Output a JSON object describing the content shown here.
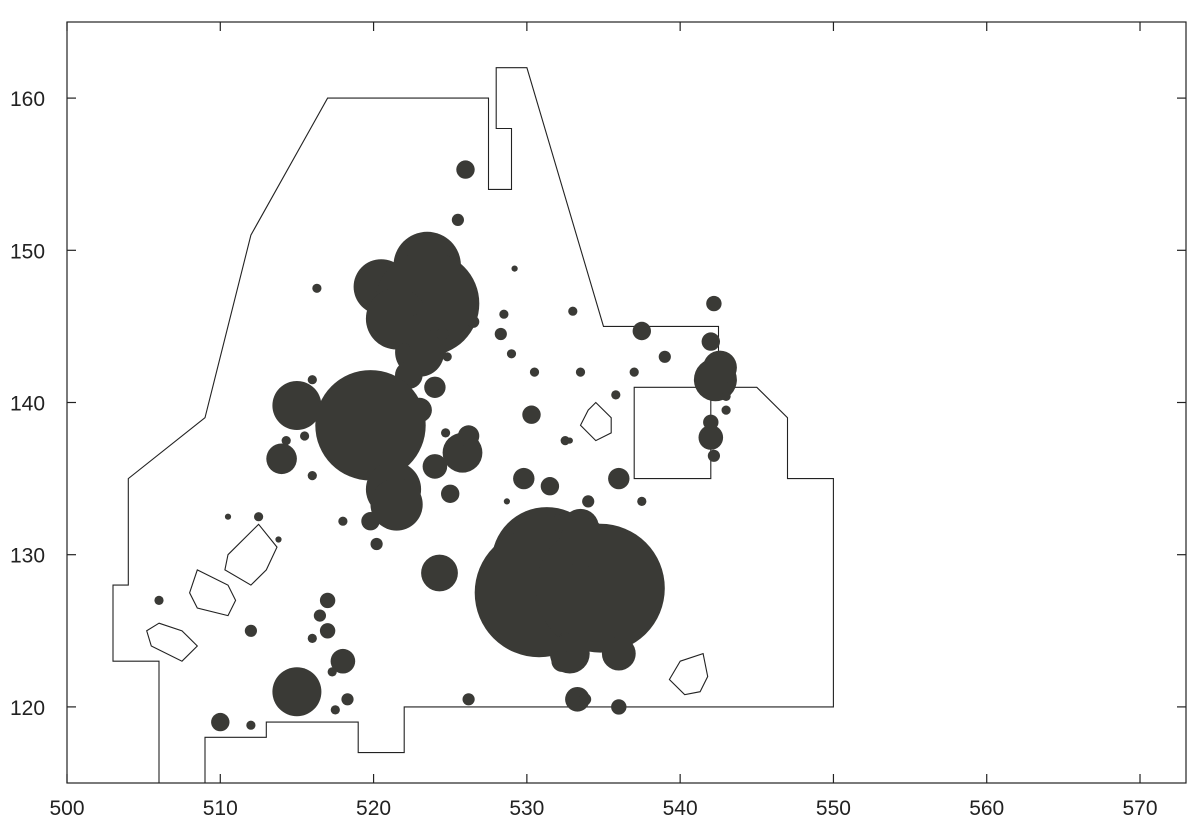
{
  "chart_data": {
    "type": "scatter",
    "title": "",
    "xlabel": "",
    "ylabel": "",
    "xlim": [
      500,
      573
    ],
    "ylim": [
      115,
      165
    ],
    "x_ticks": [
      500,
      510,
      520,
      530,
      540,
      550,
      560,
      570
    ],
    "y_ticks": [
      120,
      130,
      140,
      150,
      160
    ],
    "grid": false,
    "legend": "none",
    "colors": {
      "bubble": "#3a3a36",
      "line": "#222222"
    },
    "outlines": [
      {
        "name": "main-boundary",
        "closed": false,
        "points": [
          [
            506,
            115
          ],
          [
            506,
            123
          ],
          [
            503,
            123
          ],
          [
            503,
            128
          ],
          [
            504,
            128
          ],
          [
            504,
            135
          ],
          [
            509,
            139
          ],
          [
            512,
            151
          ],
          [
            517,
            160
          ],
          [
            527.5,
            160
          ],
          [
            527.5,
            154
          ],
          [
            529,
            154
          ],
          [
            529,
            158
          ],
          [
            528,
            158
          ],
          [
            528,
            162
          ],
          [
            530,
            162
          ],
          [
            535,
            145
          ],
          [
            542.5,
            145
          ],
          [
            542.5,
            141
          ],
          [
            545,
            141
          ],
          [
            547,
            139
          ],
          [
            547,
            135
          ],
          [
            550,
            135
          ],
          [
            550,
            120
          ],
          [
            522,
            120
          ],
          [
            522,
            117
          ],
          [
            519,
            117
          ],
          [
            519,
            119
          ],
          [
            513,
            119
          ],
          [
            513,
            118
          ],
          [
            509,
            118
          ],
          [
            509,
            115
          ]
        ]
      },
      {
        "name": "inner-rectangle",
        "closed": true,
        "points": [
          [
            537,
            141
          ],
          [
            542,
            141
          ],
          [
            542,
            135
          ],
          [
            537,
            135
          ]
        ]
      },
      {
        "name": "pentagon-right-upper",
        "closed": true,
        "points": [
          [
            534.5,
            140
          ],
          [
            535.5,
            139
          ],
          [
            535.5,
            138
          ],
          [
            534.5,
            137.5
          ],
          [
            533.5,
            138.5
          ],
          [
            534,
            139.5
          ]
        ]
      },
      {
        "name": "polygon-right-lower",
        "closed": true,
        "points": [
          [
            540,
            123
          ],
          [
            541.5,
            123.5
          ],
          [
            541.8,
            122
          ],
          [
            541.3,
            121
          ],
          [
            540.3,
            120.8
          ],
          [
            539.3,
            121.8
          ]
        ]
      },
      {
        "name": "polygon-left-top",
        "closed": true,
        "points": [
          [
            510.5,
            130
          ],
          [
            512.5,
            132
          ],
          [
            513.7,
            130.5
          ],
          [
            513,
            129
          ],
          [
            512,
            128
          ],
          [
            510.3,
            129
          ]
        ]
      },
      {
        "name": "polygon-left-mid",
        "closed": true,
        "points": [
          [
            508.5,
            129
          ],
          [
            510.5,
            128
          ],
          [
            511,
            127
          ],
          [
            510.5,
            126
          ],
          [
            508.5,
            126.5
          ],
          [
            508,
            127.5
          ]
        ]
      },
      {
        "name": "polygon-left-bottom",
        "closed": true,
        "points": [
          [
            506,
            125.5
          ],
          [
            507.5,
            125
          ],
          [
            508.5,
            124
          ],
          [
            507.5,
            123
          ],
          [
            505.5,
            124
          ],
          [
            505.2,
            125
          ]
        ]
      }
    ],
    "points": [
      {
        "x": 526.0,
        "y": 155.3,
        "size": 0.6
      },
      {
        "x": 525.5,
        "y": 152.0,
        "size": 0.4
      },
      {
        "x": 523.5,
        "y": 150.5,
        "size": 0.4
      },
      {
        "x": 523.5,
        "y": 149.0,
        "size": 2.2
      },
      {
        "x": 520.5,
        "y": 147.6,
        "size": 1.8
      },
      {
        "x": 522.5,
        "y": 147.0,
        "size": 2.0
      },
      {
        "x": 523.5,
        "y": 146.5,
        "size": 3.4
      },
      {
        "x": 521.5,
        "y": 145.5,
        "size": 2.0
      },
      {
        "x": 523.0,
        "y": 144.8,
        "size": 1.0
      },
      {
        "x": 523.0,
        "y": 143.3,
        "size": 1.6
      },
      {
        "x": 516.3,
        "y": 147.5,
        "size": 0.3
      },
      {
        "x": 524.5,
        "y": 144.5,
        "size": 0.4
      },
      {
        "x": 524.5,
        "y": 143.5,
        "size": 0.3
      },
      {
        "x": 522.0,
        "y": 143.5,
        "size": 0.4
      },
      {
        "x": 524.8,
        "y": 143.0,
        "size": 0.3
      },
      {
        "x": 522.3,
        "y": 141.8,
        "size": 0.9
      },
      {
        "x": 524.0,
        "y": 141.0,
        "size": 0.7
      },
      {
        "x": 523.0,
        "y": 139.5,
        "size": 0.8
      },
      {
        "x": 515.0,
        "y": 139.8,
        "size": 1.6
      },
      {
        "x": 519.8,
        "y": 138.5,
        "size": 3.6
      },
      {
        "x": 516.0,
        "y": 141.5,
        "size": 0.3
      },
      {
        "x": 514.3,
        "y": 137.5,
        "size": 0.3
      },
      {
        "x": 515.5,
        "y": 137.8,
        "size": 0.3
      },
      {
        "x": 514.0,
        "y": 136.3,
        "size": 1.0
      },
      {
        "x": 516.0,
        "y": 135.2,
        "size": 0.3
      },
      {
        "x": 521.3,
        "y": 134.3,
        "size": 1.8
      },
      {
        "x": 521.5,
        "y": 133.3,
        "size": 1.7
      },
      {
        "x": 519.8,
        "y": 132.2,
        "size": 0.6
      },
      {
        "x": 518.0,
        "y": 132.2,
        "size": 0.3
      },
      {
        "x": 520.2,
        "y": 130.7,
        "size": 0.4
      },
      {
        "x": 524.0,
        "y": 135.8,
        "size": 0.8
      },
      {
        "x": 525.0,
        "y": 134.0,
        "size": 0.6
      },
      {
        "x": 525.8,
        "y": 136.7,
        "size": 1.3
      },
      {
        "x": 526.2,
        "y": 137.8,
        "size": 0.7
      },
      {
        "x": 524.7,
        "y": 138.0,
        "size": 0.3
      },
      {
        "x": 524.3,
        "y": 128.8,
        "size": 1.2
      },
      {
        "x": 517.0,
        "y": 127.0,
        "size": 0.5
      },
      {
        "x": 516.5,
        "y": 126.0,
        "size": 0.4
      },
      {
        "x": 517.0,
        "y": 125.0,
        "size": 0.5
      },
      {
        "x": 512.0,
        "y": 125.0,
        "size": 0.4
      },
      {
        "x": 516.0,
        "y": 124.5,
        "size": 0.3
      },
      {
        "x": 518.0,
        "y": 123.0,
        "size": 0.8
      },
      {
        "x": 517.3,
        "y": 122.3,
        "size": 0.3
      },
      {
        "x": 515.0,
        "y": 121.0,
        "size": 1.6
      },
      {
        "x": 510.0,
        "y": 119.0,
        "size": 0.6
      },
      {
        "x": 512.0,
        "y": 118.8,
        "size": 0.3
      },
      {
        "x": 518.3,
        "y": 120.5,
        "size": 0.4
      },
      {
        "x": 517.5,
        "y": 119.8,
        "size": 0.3
      },
      {
        "x": 526.2,
        "y": 120.5,
        "size": 0.4
      },
      {
        "x": 506.0,
        "y": 127.0,
        "size": 0.3
      },
      {
        "x": 512.5,
        "y": 132.5,
        "size": 0.3
      },
      {
        "x": 510.5,
        "y": 132.5,
        "size": 0.2
      },
      {
        "x": 513.8,
        "y": 131.0,
        "size": 0.2
      },
      {
        "x": 526.5,
        "y": 145.3,
        "size": 0.4
      },
      {
        "x": 528.3,
        "y": 144.5,
        "size": 0.4
      },
      {
        "x": 528.5,
        "y": 145.8,
        "size": 0.3
      },
      {
        "x": 529.0,
        "y": 143.2,
        "size": 0.3
      },
      {
        "x": 529.2,
        "y": 148.8,
        "size": 0.2
      },
      {
        "x": 530.5,
        "y": 142.0,
        "size": 0.3
      },
      {
        "x": 530.3,
        "y": 139.2,
        "size": 0.6
      },
      {
        "x": 529.8,
        "y": 135.0,
        "size": 0.7
      },
      {
        "x": 531.5,
        "y": 134.5,
        "size": 0.6
      },
      {
        "x": 533.0,
        "y": 146.0,
        "size": 0.3
      },
      {
        "x": 533.5,
        "y": 142.0,
        "size": 0.3
      },
      {
        "x": 532.5,
        "y": 137.5,
        "size": 0.3
      },
      {
        "x": 532.8,
        "y": 137.5,
        "size": 0.2
      },
      {
        "x": 531.3,
        "y": 129.5,
        "size": 3.6
      },
      {
        "x": 530.8,
        "y": 127.5,
        "size": 4.2
      },
      {
        "x": 534.8,
        "y": 127.8,
        "size": 4.2
      },
      {
        "x": 533.5,
        "y": 131.8,
        "size": 1.2
      },
      {
        "x": 533.7,
        "y": 130.8,
        "size": 1.6
      },
      {
        "x": 534.0,
        "y": 133.5,
        "size": 0.4
      },
      {
        "x": 532.5,
        "y": 124.5,
        "size": 0.4
      },
      {
        "x": 532.8,
        "y": 123.5,
        "size": 1.3
      },
      {
        "x": 532.3,
        "y": 123.0,
        "size": 0.7
      },
      {
        "x": 533.3,
        "y": 120.5,
        "size": 0.8
      },
      {
        "x": 533.8,
        "y": 120.5,
        "size": 0.4
      },
      {
        "x": 536.0,
        "y": 123.5,
        "size": 1.1
      },
      {
        "x": 536.0,
        "y": 120.0,
        "size": 0.5
      },
      {
        "x": 536.0,
        "y": 135.0,
        "size": 0.7
      },
      {
        "x": 535.8,
        "y": 140.5,
        "size": 0.3
      },
      {
        "x": 537.0,
        "y": 142.0,
        "size": 0.3
      },
      {
        "x": 537.5,
        "y": 144.7,
        "size": 0.6
      },
      {
        "x": 539.0,
        "y": 143.0,
        "size": 0.4
      },
      {
        "x": 537.5,
        "y": 133.5,
        "size": 0.3
      },
      {
        "x": 542.0,
        "y": 144.0,
        "size": 0.6
      },
      {
        "x": 542.2,
        "y": 146.5,
        "size": 0.5
      },
      {
        "x": 542.3,
        "y": 141.5,
        "size": 1.4
      },
      {
        "x": 542.6,
        "y": 142.3,
        "size": 1.1
      },
      {
        "x": 543.0,
        "y": 140.4,
        "size": 0.3
      },
      {
        "x": 542.0,
        "y": 138.7,
        "size": 0.5
      },
      {
        "x": 542.0,
        "y": 137.7,
        "size": 0.8
      },
      {
        "x": 542.2,
        "y": 136.5,
        "size": 0.4
      },
      {
        "x": 543.0,
        "y": 139.5,
        "size": 0.3
      },
      {
        "x": 528.7,
        "y": 133.5,
        "size": 0.2
      },
      {
        "x": 532.0,
        "y": 132.5,
        "size": 0.2
      }
    ]
  }
}
